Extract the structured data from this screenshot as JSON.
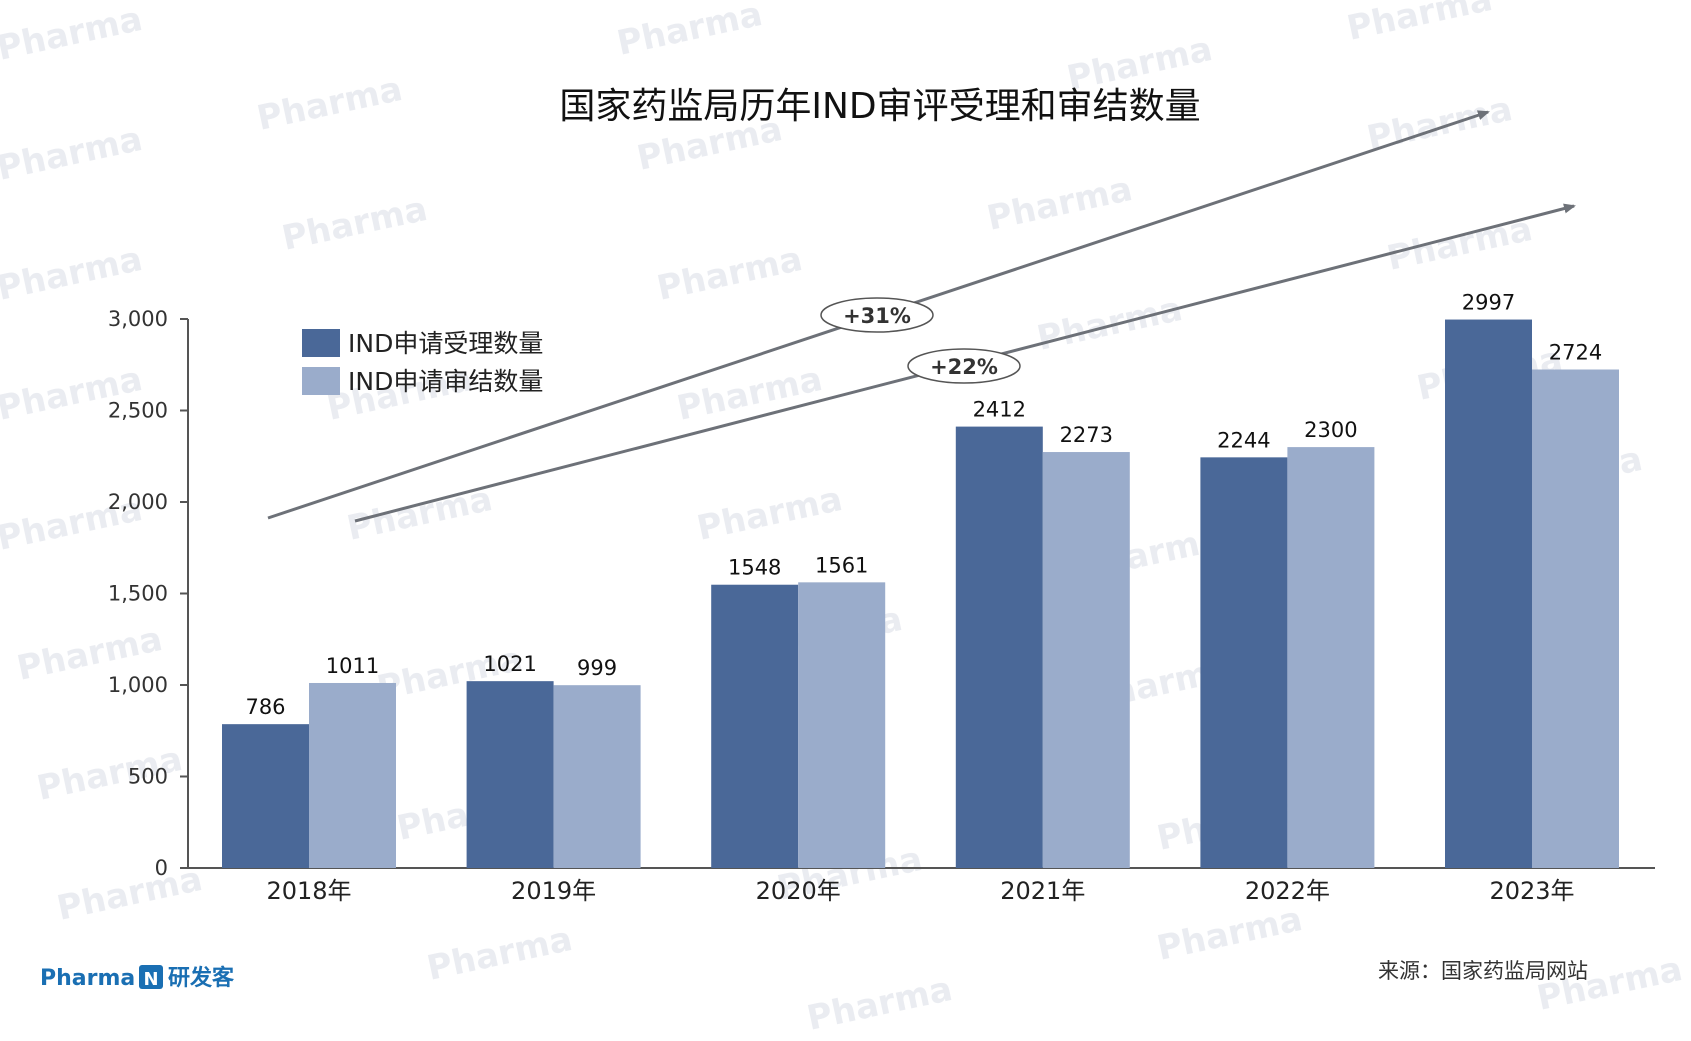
{
  "chart_data": {
    "type": "bar",
    "title": "国家药监局历年IND审评受理和审结数量",
    "categories": [
      "2018年",
      "2019年",
      "2020年",
      "2021年",
      "2022年",
      "2023年"
    ],
    "series": [
      {
        "name": "IND申请受理数量",
        "values": [
          786,
          1021,
          1548,
          2412,
          2244,
          2997
        ],
        "color": "#4a6898"
      },
      {
        "name": "IND申请审结数量",
        "values": [
          1011,
          999,
          1561,
          2273,
          2300,
          2724
        ],
        "color": "#9aaccb"
      }
    ],
    "ylim": [
      0,
      3000
    ],
    "yticks": [
      "0",
      "500",
      "1,000",
      "1,500",
      "2,000",
      "2,500",
      "3,000"
    ],
    "legend_position": "top-left",
    "grid": false,
    "annotations": [
      {
        "text": "+31%",
        "series": "IND申请受理数量"
      },
      {
        "text": "+22%",
        "series": "IND申请审结数量"
      }
    ]
  },
  "source": "来源：国家药监局网站",
  "brand": {
    "name": "Pharma",
    "mark": "N",
    "suffix": "研发客"
  },
  "watermark": "Pharma",
  "colors": {
    "arrow": "#6d7178",
    "axis": "#555555",
    "brand": "#1a6fb3"
  }
}
